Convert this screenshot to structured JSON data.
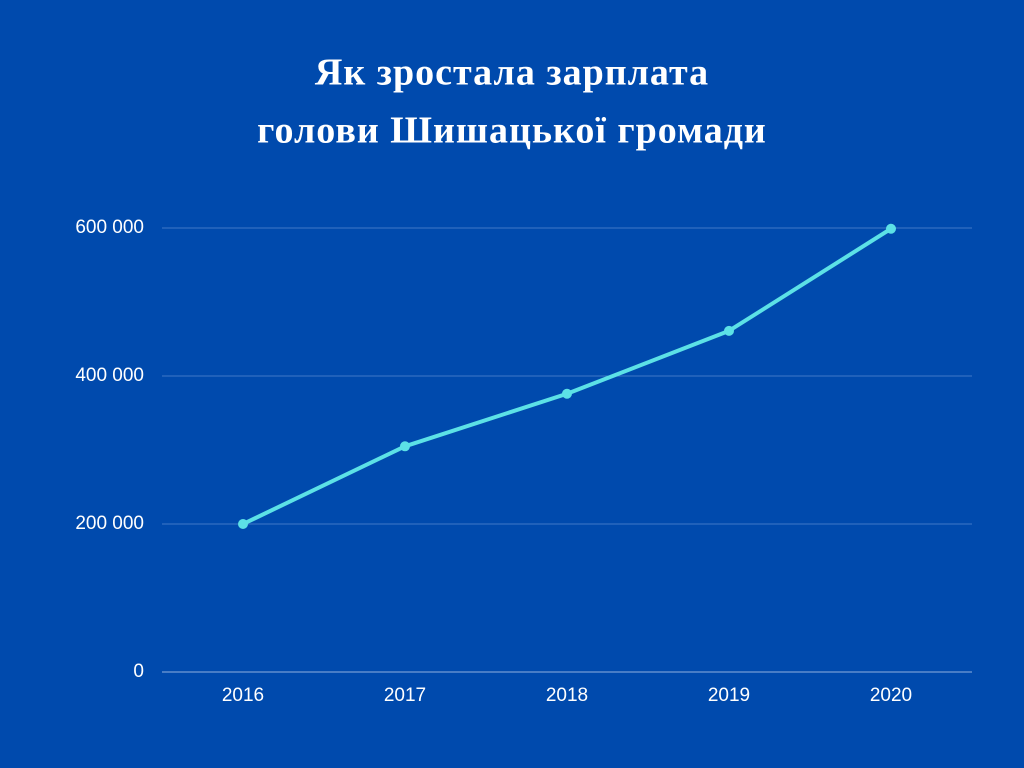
{
  "chart_data": {
    "type": "line",
    "title": [
      "Як зростала зарплата",
      "голови Шишацької громади"
    ],
    "categories": [
      "2016",
      "2017",
      "2018",
      "2019",
      "2020"
    ],
    "values": [
      200000,
      305000,
      376000,
      461000,
      599000
    ],
    "color": "#5ce1e6",
    "ylim": [
      0,
      600000
    ],
    "yticks": [
      0,
      {
        "value": 200000,
        "label": "200 000"
      },
      {
        "value": 400000,
        "label": "400 000"
      },
      {
        "value": 600000,
        "label": "600 000"
      }
    ],
    "grid": true
  }
}
